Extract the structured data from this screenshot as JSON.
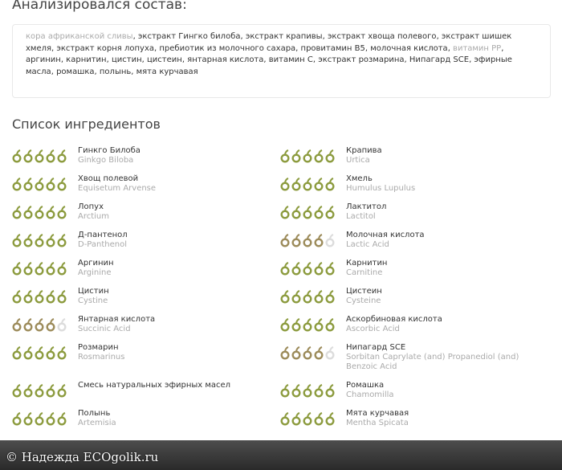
{
  "header": {
    "title": "Анализировался состав:"
  },
  "composition": {
    "separator": ", ",
    "items": [
      {
        "text": "кора африканской сливы",
        "recognized": false
      },
      {
        "text": "экстракт Гингко билоба",
        "recognized": true
      },
      {
        "text": "экстракт крапивы",
        "recognized": true
      },
      {
        "text": "экстракт хвоща полевого",
        "recognized": true
      },
      {
        "text": "экстракт шишек хмеля",
        "recognized": true
      },
      {
        "text": "экстракт корня лопуха",
        "recognized": true
      },
      {
        "text": "пребиотик из молочного сахара",
        "recognized": true
      },
      {
        "text": "провитамин B5",
        "recognized": true
      },
      {
        "text": "молочная кислота",
        "recognized": true
      },
      {
        "text": "витамин PP",
        "recognized": false
      },
      {
        "text": "аргинин",
        "recognized": true
      },
      {
        "text": "карнитин",
        "recognized": true
      },
      {
        "text": "цистин",
        "recognized": true
      },
      {
        "text": "цистеин",
        "recognized": true
      },
      {
        "text": "янтарная кислота",
        "recognized": true
      },
      {
        "text": "витамин С",
        "recognized": true
      },
      {
        "text": "экстракт розмарина",
        "recognized": true
      },
      {
        "text": "Нипагард SCE",
        "recognized": true
      },
      {
        "text": "эфирные масла",
        "recognized": true
      },
      {
        "text": "ромашка",
        "recognized": true
      },
      {
        "text": "полынь",
        "recognized": true
      },
      {
        "text": "мята курчавая",
        "recognized": true
      }
    ]
  },
  "ingredients": {
    "title": "Список ингредиентов",
    "max_rating": 5,
    "items": [
      {
        "name": "Гинкго Билоба",
        "latin": "Ginkgo Biloba",
        "rating": 5
      },
      {
        "name": "Крапива",
        "latin": "Urtica",
        "rating": 5
      },
      {
        "name": "Хвощ полевой",
        "latin": "Equisetum Arvense",
        "rating": 5
      },
      {
        "name": "Хмель",
        "latin": "Humulus Lupulus",
        "rating": 5
      },
      {
        "name": "Лопух",
        "latin": "Arctium",
        "rating": 5
      },
      {
        "name": "Лактитол",
        "latin": "Lactitol",
        "rating": 5
      },
      {
        "name": "Д-пантенол",
        "latin": "D-Panthenol",
        "rating": 5
      },
      {
        "name": "Молочная кислота",
        "latin": "Lactic Acid",
        "rating": 4
      },
      {
        "name": "Аргинин",
        "latin": "Arginine",
        "rating": 5
      },
      {
        "name": "Карнитин",
        "latin": "Carnitine",
        "rating": 5
      },
      {
        "name": "Цистин",
        "latin": "Cystine",
        "rating": 5
      },
      {
        "name": "Цистеин",
        "latin": "Cysteine",
        "rating": 5
      },
      {
        "name": "Янтарная кислота",
        "latin": "Succinic Acid",
        "rating": 4
      },
      {
        "name": "Аскорбиновая кислота",
        "latin": "Ascorbic Acid",
        "rating": 5
      },
      {
        "name": "Розмарин",
        "latin": "Rosmarinus",
        "rating": 5
      },
      {
        "name": "Нипагард SCE",
        "latin": "Sorbitan Caprylate (and) Propanediol (and) Benzoic Acid",
        "rating": 4
      },
      {
        "name": "Смесь натуральных эфирных масел",
        "rating": 5
      },
      {
        "name": "Ромашка",
        "latin": "Chamomilla",
        "rating": 5
      },
      {
        "name": "Полынь",
        "latin": "Artemisia",
        "rating": 5
      },
      {
        "name": "Мята курчавая",
        "latin": "Mentha Spicata",
        "rating": 5
      }
    ]
  },
  "watermark": "© Надежда ECOgolik.ru"
}
